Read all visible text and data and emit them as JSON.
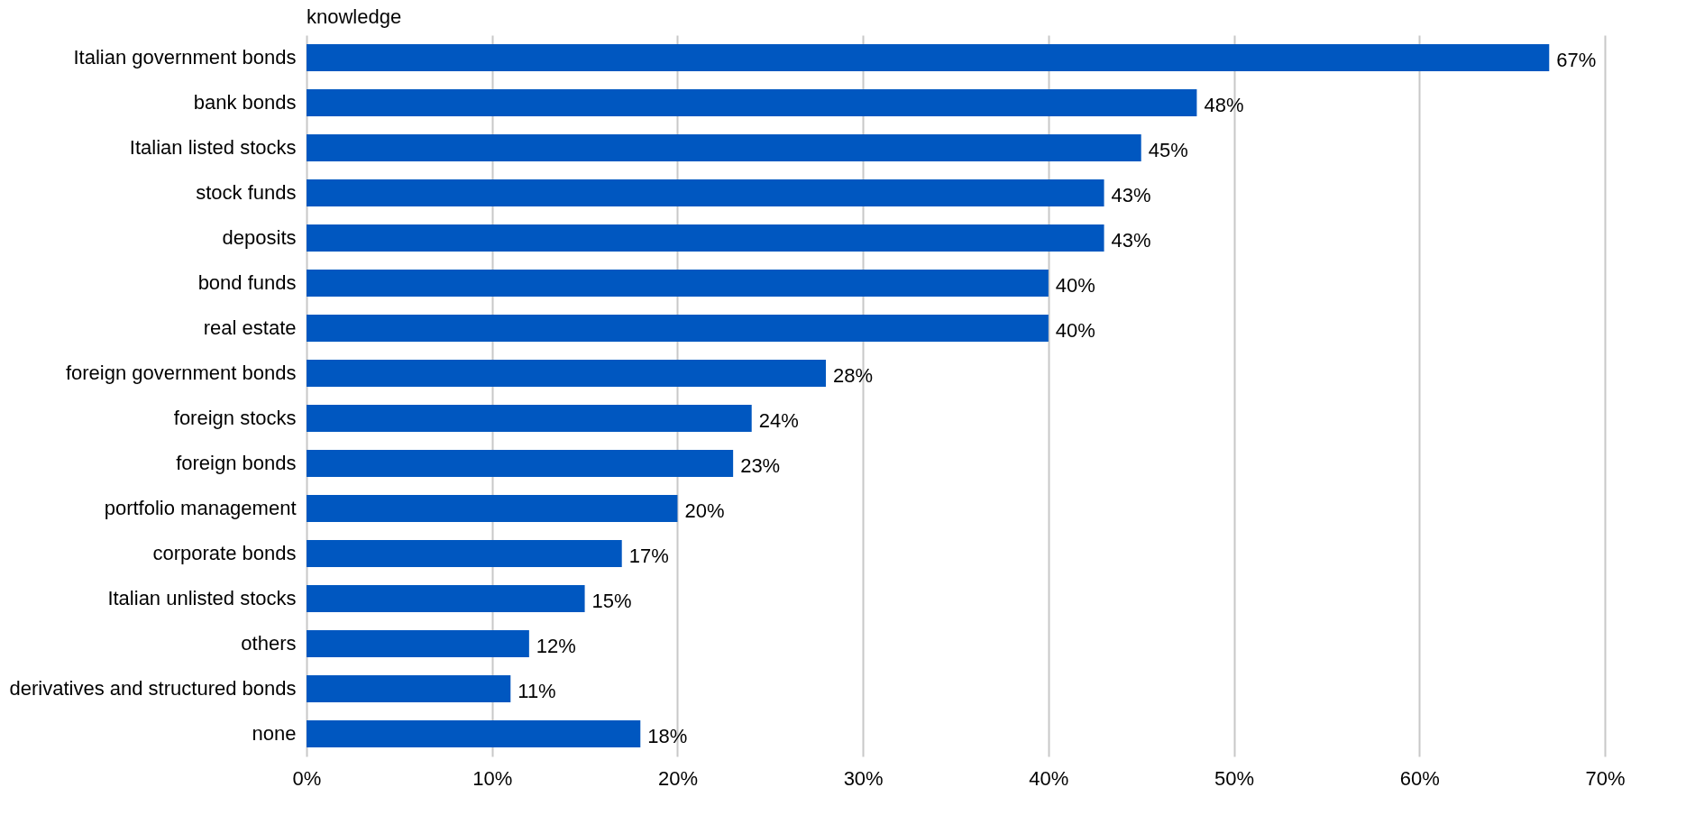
{
  "chart_data": {
    "type": "bar",
    "orientation": "horizontal",
    "title": "knowledge",
    "categories": [
      "Italian government bonds",
      "bank bonds",
      "Italian listed stocks",
      "stock funds",
      "deposits",
      "bond funds",
      "real estate",
      "foreign government bonds",
      "foreign stocks",
      "foreign bonds",
      "portfolio management",
      "corporate bonds",
      "Italian unlisted stocks",
      "others",
      "derivatives and structured bonds",
      "none"
    ],
    "values": [
      67,
      48,
      45,
      43,
      43,
      40,
      40,
      28,
      24,
      23,
      20,
      17,
      15,
      12,
      11,
      18
    ],
    "value_labels": [
      "67%",
      "48%",
      "45%",
      "43%",
      "43%",
      "40%",
      "40%",
      "28%",
      "24%",
      "23%",
      "20%",
      "17%",
      "15%",
      "12%",
      "11%",
      "18%"
    ],
    "color": "#0057c0",
    "xlim": [
      0,
      70
    ],
    "xticks": [
      {
        "value": 0,
        "label": "0%"
      },
      {
        "value": 10,
        "label": "10%"
      },
      {
        "value": 20,
        "label": "20%"
      },
      {
        "value": 30,
        "label": "30%"
      },
      {
        "value": 40,
        "label": "40%"
      },
      {
        "value": 50,
        "label": "50%"
      },
      {
        "value": 60,
        "label": "60%"
      },
      {
        "value": 70,
        "label": "70%"
      }
    ],
    "grid": "x"
  }
}
